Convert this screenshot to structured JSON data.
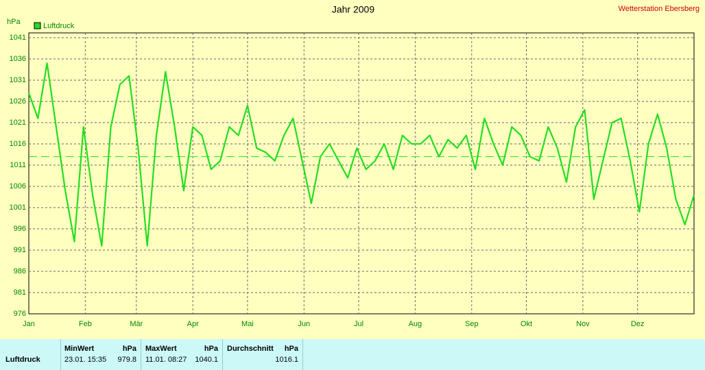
{
  "chart_data": {
    "type": "line",
    "title": "Jahr 2009",
    "station": "Wetterstation Ebersberg",
    "y_label": "hPa",
    "x": [
      0,
      5,
      10,
      15,
      20,
      25,
      30,
      35,
      40,
      45,
      50,
      55,
      60,
      65,
      70,
      75,
      80,
      85,
      90,
      95,
      100,
      105,
      110,
      115,
      120,
      125,
      130,
      135,
      140,
      145,
      150,
      155,
      160,
      165,
      170,
      175,
      180,
      185,
      190,
      195,
      200,
      205,
      210,
      215,
      220,
      225,
      230,
      235,
      240,
      245,
      250,
      255,
      260,
      265,
      270,
      275,
      280,
      285,
      290,
      295,
      300,
      305,
      310,
      315,
      320,
      325,
      330,
      335,
      340,
      345,
      350,
      355,
      360,
      365
    ],
    "series": [
      {
        "name": "Luftdruck",
        "color": "#22dd22",
        "values": [
          1028,
          1022,
          1035,
          1020,
          1005,
          993,
          1020,
          1004,
          992,
          1020,
          1030,
          1032,
          1015,
          992,
          1018,
          1033,
          1020,
          1005,
          1020,
          1018,
          1010,
          1012,
          1020,
          1018,
          1025,
          1015,
          1014,
          1012,
          1018,
          1022,
          1012,
          1002,
          1013,
          1016,
          1012,
          1008,
          1015,
          1010,
          1012,
          1016,
          1010,
          1018,
          1016,
          1016,
          1018,
          1013,
          1017,
          1015,
          1018,
          1010,
          1022,
          1016,
          1011,
          1020,
          1018,
          1013,
          1012,
          1020,
          1015,
          1007,
          1020,
          1024,
          1003,
          1012,
          1021,
          1022,
          1012,
          1000,
          1016,
          1023,
          1015,
          1003,
          997,
          1004
        ]
      }
    ],
    "reference_line": 1013,
    "xlim": [
      0,
      365
    ],
    "xticks": [
      {
        "value": 0,
        "label": "Jan"
      },
      {
        "value": 31,
        "label": "Feb"
      },
      {
        "value": 59,
        "label": "Mär"
      },
      {
        "value": 90,
        "label": "Apr"
      },
      {
        "value": 120,
        "label": "Mai"
      },
      {
        "value": 151,
        "label": "Jun"
      },
      {
        "value": 181,
        "label": "Jul"
      },
      {
        "value": 212,
        "label": "Aug"
      },
      {
        "value": 243,
        "label": "Sep"
      },
      {
        "value": 273,
        "label": "Okt"
      },
      {
        "value": 304,
        "label": "Nov"
      },
      {
        "value": 334,
        "label": "Dez"
      }
    ],
    "ylim": [
      976,
      1041
    ],
    "yticks": [
      976,
      981,
      986,
      991,
      996,
      1001,
      1006,
      1011,
      1016,
      1021,
      1026,
      1031,
      1036,
      1041
    ],
    "grid": true
  },
  "stats": {
    "row_label": "Luftdruck",
    "columns": [
      {
        "header": "MinWert",
        "unit": "hPa",
        "time": "23.01.  15:35",
        "value": "979.8"
      },
      {
        "header": "MaxWert",
        "unit": "hPa",
        "time": "11.01.  08:27",
        "value": "1040.1"
      },
      {
        "header": "Durchschnitt",
        "unit": "hPa",
        "value": "1016.1"
      }
    ]
  }
}
